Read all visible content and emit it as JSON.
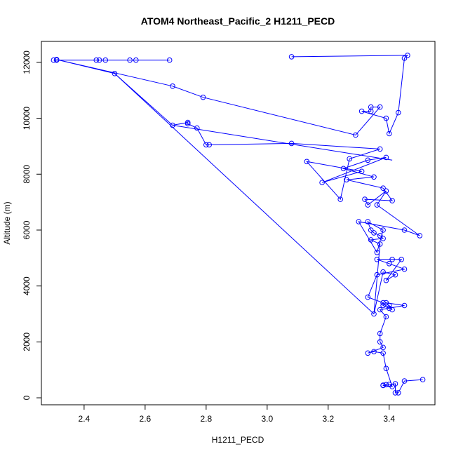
{
  "chart_data": {
    "type": "line",
    "title": "ATOM4 Northeast_Pacific_2 H1211_PECD",
    "xlabel": "H1211_PECD",
    "ylabel": "Altitude (m)",
    "xlim": [
      2.26,
      3.55
    ],
    "ylim": [
      -250,
      12750
    ],
    "xticks": [
      2.4,
      2.6,
      2.8,
      3.0,
      3.2,
      3.4
    ],
    "xtick_labels": [
      "2.4",
      "2.6",
      "2.8",
      "3.0",
      "3.2",
      "3.4"
    ],
    "yticks": [
      0,
      2000,
      4000,
      6000,
      8000,
      10000,
      12000
    ],
    "ytick_labels": [
      "0",
      "2000",
      "4000",
      "6000",
      "8000",
      "10000",
      "12000"
    ],
    "color": "#0000ff",
    "marker": "open-circle",
    "grid": false,
    "series": [
      {
        "x": [
          3.51,
          3.45,
          3.43,
          3.42,
          3.42,
          3.4,
          3.39,
          3.38,
          3.38,
          3.41,
          3.39,
          3.38,
          3.35,
          3.33,
          3.38,
          3.37,
          3.37,
          3.39,
          3.37,
          3.45,
          3.39,
          3.41,
          3.4,
          3.4,
          3.38,
          3.38,
          3.33,
          3.36,
          3.45,
          3.4,
          3.36,
          3.41,
          3.44,
          3.39,
          3.42,
          3.38,
          3.35,
          3.37,
          3.34,
          3.38,
          3.37,
          3.35,
          3.34,
          3.33,
          3.38,
          3.36,
          3.3,
          3.45,
          3.5,
          3.36,
          3.39,
          3.33,
          3.32,
          3.41,
          3.38,
          3.26,
          3.35,
          3.25,
          3.33,
          3.39,
          3.18,
          3.31,
          3.13,
          3.24,
          3.27,
          3.37,
          3.08,
          2.81,
          2.8,
          2.77,
          2.74,
          2.74,
          2.69,
          2.5,
          2.31,
          2.69,
          2.79,
          3.29,
          3.37,
          3.34,
          3.34,
          3.31,
          3.39,
          3.4,
          3.43,
          3.45,
          3.46,
          3.08
        ],
        "y": [
          650,
          600,
          180,
          180,
          500,
          480,
          470,
          440,
          450,
          400,
          1050,
          1600,
          1650,
          1600,
          1800,
          2000,
          2300,
          2900,
          3150,
          3300,
          3400,
          3150,
          3300,
          3200,
          3300,
          3400,
          3600,
          4400,
          4600,
          4800,
          4950,
          4950,
          4950,
          4200,
          4400,
          4500,
          3000,
          5500,
          5650,
          5700,
          5800,
          5900,
          6000,
          6300,
          6000,
          5200,
          6300,
          6000,
          5800,
          6900,
          7400,
          6900,
          7100,
          7050,
          7500,
          7800,
          7900,
          8200,
          8500,
          8600,
          7700,
          8100,
          8450,
          7100,
          8550,
          8900,
          9100,
          9050,
          9050,
          9650,
          9800,
          9850,
          9750,
          11600,
          12100,
          11150,
          10750,
          9400,
          10400,
          10400,
          10250,
          10250,
          10000,
          9450,
          10200,
          12150,
          12250,
          12200
        ],
        "extra_segments": [
          {
            "x": [
              2.3,
              2.68
            ],
            "y": [
              12080,
              12080
            ]
          },
          {
            "x": [
              2.69,
              3.41
            ],
            "y": [
              9750,
              8500
            ]
          },
          {
            "x": [
              2.5,
              3.35
            ],
            "y": [
              11600,
              3000
            ]
          }
        ],
        "extra_points": {
          "x": [
            2.3,
            2.31,
            2.44,
            2.45,
            2.47,
            2.55,
            2.57,
            2.68
          ],
          "y": [
            12080,
            12080,
            12080,
            12080,
            12080,
            12080,
            12080,
            12080
          ]
        }
      }
    ]
  }
}
